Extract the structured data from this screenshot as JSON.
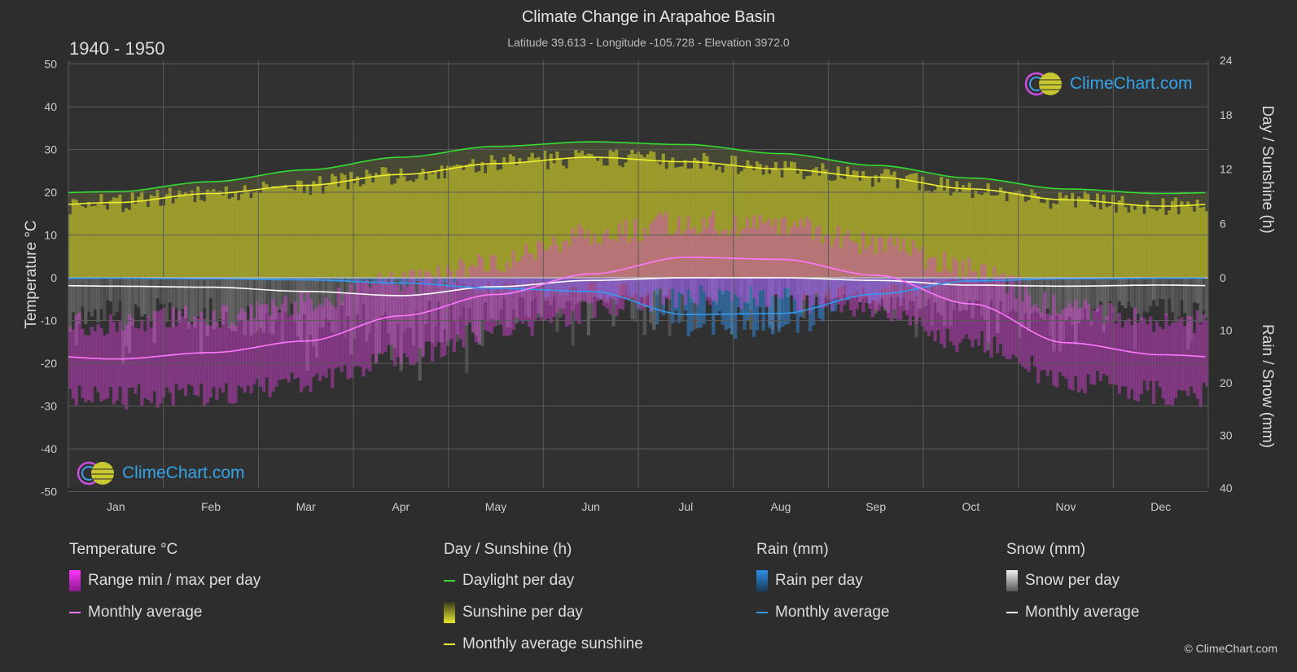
{
  "header": {
    "title": "Climate Change in Arapahoe Basin",
    "subtitle": "Latitude 39.613 - Longitude -105.728 - Elevation 3972.0",
    "period": "1940 - 1950"
  },
  "brand": {
    "name": "ClimeChart.com",
    "copyright": "© ClimeChart.com"
  },
  "colors": {
    "background": "#2d2d2d",
    "temp_range": "#e040e0",
    "temp_avg": "#ff77ff",
    "daylight": "#33dd33",
    "sunshine_fill": "#b5b52a",
    "sunshine_avg": "#eeee30",
    "rain": "#2f86d6",
    "rain_avg": "#3399ee",
    "snow": "#c8c8c8",
    "snow_avg": "#ffffff",
    "brand": "#35a3e8"
  },
  "legend": {
    "temperature": {
      "title": "Temperature °C",
      "range": "Range min / max per day",
      "avg": "Monthly average"
    },
    "sun": {
      "title": "Day / Sunshine (h)",
      "daylight": "Daylight per day",
      "sunshine": "Sunshine per day",
      "avg": "Monthly average sunshine"
    },
    "rain": {
      "title": "Rain (mm)",
      "rain": "Rain per day",
      "avg": "Monthly average"
    },
    "snow": {
      "title": "Snow (mm)",
      "snow": "Snow per day",
      "avg": "Monthly average"
    }
  },
  "chart_data": {
    "type": "line",
    "months": [
      "Jan",
      "Feb",
      "Mar",
      "Apr",
      "May",
      "Jun",
      "Jul",
      "Aug",
      "Sep",
      "Oct",
      "Nov",
      "Dec"
    ],
    "y_left": {
      "label": "Temperature °C",
      "range": [
        -50,
        50
      ],
      "ticks": [
        50,
        40,
        30,
        20,
        10,
        0,
        -10,
        -20,
        -30,
        -40,
        -50
      ]
    },
    "y_right_top": {
      "label": "Day / Sunshine (h)",
      "range": [
        0,
        24
      ],
      "ticks": [
        24,
        18,
        12,
        6,
        0
      ]
    },
    "y_right_bottom": {
      "label": "Rain / Snow (mm)",
      "range": [
        0,
        40
      ],
      "ticks": [
        10,
        20,
        30,
        40
      ]
    },
    "grid": true,
    "series": [
      {
        "name": "Daylight per day",
        "unit": "h",
        "values": [
          9.5,
          10.6,
          11.9,
          13.3,
          14.5,
          15.0,
          14.7,
          13.7,
          12.4,
          11.0,
          9.8,
          9.3
        ]
      },
      {
        "name": "Monthly average sunshine",
        "unit": "h",
        "values": [
          8.3,
          9.3,
          10.2,
          11.4,
          12.6,
          13.3,
          12.8,
          12.0,
          11.1,
          9.8,
          8.6,
          7.9
        ]
      },
      {
        "name": "Temperature monthly average",
        "unit": "°C",
        "values": [
          -19.0,
          -17.5,
          -14.8,
          -8.9,
          -3.9,
          0.9,
          4.8,
          4.3,
          0.6,
          -6.1,
          -15.2,
          -18.0
        ]
      },
      {
        "name": "Temperature daily max (range top)",
        "unit": "°C",
        "values": [
          -11,
          -9,
          -6,
          -1,
          4,
          10,
          13,
          12,
          8,
          2,
          -7,
          -10
        ]
      },
      {
        "name": "Temperature daily min (range bottom)",
        "unit": "°C",
        "values": [
          -28,
          -27,
          -24,
          -18,
          -12,
          -8,
          -4,
          -5,
          -8,
          -15,
          -24,
          -27
        ]
      },
      {
        "name": "Rain monthly average",
        "unit": "mm",
        "values": [
          0.1,
          0.2,
          0.4,
          1.0,
          2.0,
          2.6,
          7.0,
          6.8,
          3.1,
          0.6,
          0.2,
          0.1
        ]
      },
      {
        "name": "Snow monthly average",
        "unit": "mm",
        "values": [
          1.6,
          1.8,
          2.6,
          3.4,
          1.7,
          0.5,
          0.0,
          0.0,
          0.5,
          1.4,
          1.6,
          1.4
        ]
      }
    ]
  }
}
